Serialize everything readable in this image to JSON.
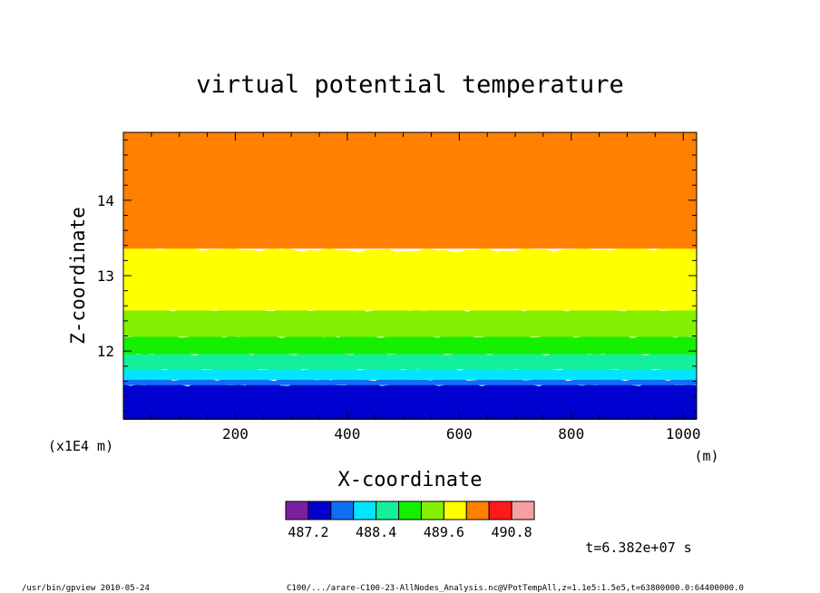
{
  "chart_data": {
    "type": "heatmap",
    "title": "virtual potential temperature",
    "xlabel": "X-coordinate",
    "ylabel": "Z-coordinate",
    "x_unit": "(m)",
    "y_scale_note": "(x1E4 m)",
    "xlim": [
      0,
      1024
    ],
    "ylim": [
      11.1,
      14.9
    ],
    "x_ticks": [
      200,
      400,
      600,
      800,
      1000
    ],
    "y_ticks": [
      12,
      13,
      14
    ],
    "colorbar": {
      "colors": [
        "#7a1fa0",
        "#0000d0",
        "#0e6ff5",
        "#00e6ff",
        "#14f09a",
        "#14f000",
        "#82f000",
        "#ffff00",
        "#ff8000",
        "#ff1a1a",
        "#f5a0a0"
      ],
      "tick_labels": [
        "487.2",
        "488.4",
        "489.6",
        "490.8"
      ]
    },
    "bands": [
      {
        "color": "#0000d0",
        "from": 11.1,
        "to": 11.56
      },
      {
        "color": "#0e6ff5",
        "from": 11.56,
        "to": 11.63
      },
      {
        "color": "#00e6ff",
        "from": 11.63,
        "to": 11.77
      },
      {
        "color": "#14f09a",
        "from": 11.77,
        "to": 11.97
      },
      {
        "color": "#14f000",
        "from": 11.97,
        "to": 12.2
      },
      {
        "color": "#82f000",
        "from": 12.2,
        "to": 12.55
      },
      {
        "color": "#ffff00",
        "from": 12.55,
        "to": 13.37
      },
      {
        "color": "#ff8000",
        "from": 13.37,
        "to": 14.9
      }
    ],
    "time_label": "t=6.382e+07 s"
  },
  "footer": {
    "left": "/usr/bin/gpview  2010-05-24",
    "right": "C100/.../arare-C100-23-AllNodes_Analysis.nc@VPotTempAll,z=1.1e5:1.5e5,t=63800000.0:64400000.0"
  }
}
